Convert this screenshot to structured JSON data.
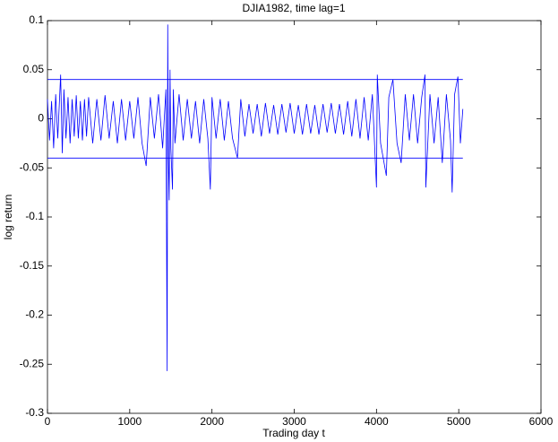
{
  "chart_data": {
    "type": "line",
    "title": "DJIA1982, time lag=1",
    "x_label": "Trading day t",
    "y_label": "log return",
    "xlim": [
      0,
      6000
    ],
    "xticks": [
      0,
      1000,
      2000,
      3000,
      4000,
      5000,
      6000
    ],
    "ylim": [
      -0.3,
      0.1
    ],
    "yticks": [
      0.1,
      0.05,
      0,
      -0.05,
      -0.1,
      -0.15,
      -0.2,
      -0.25,
      -0.3
    ],
    "grid": false,
    "series": [
      {
        "color": "#0000ff",
        "x": [
          0,
          25,
          50,
          75,
          100,
          125,
          160,
          180,
          200,
          225,
          250,
          275,
          300,
          325,
          350,
          375,
          400,
          425,
          450,
          475,
          500,
          550,
          600,
          650,
          700,
          750,
          800,
          850,
          900,
          950,
          1000,
          1050,
          1100,
          1150,
          1200,
          1250,
          1300,
          1350,
          1400,
          1440,
          1455,
          1462,
          1470,
          1480,
          1490,
          1500,
          1520,
          1530,
          1550,
          1600,
          1650,
          1700,
          1750,
          1800,
          1850,
          1900,
          1950,
          1980,
          2000,
          2050,
          2100,
          2150,
          2200,
          2250,
          2310,
          2350,
          2400,
          2450,
          2500,
          2550,
          2600,
          2650,
          2700,
          2750,
          2800,
          2850,
          2900,
          2950,
          3000,
          3050,
          3100,
          3150,
          3200,
          3250,
          3300,
          3350,
          3400,
          3450,
          3500,
          3550,
          3600,
          3650,
          3700,
          3750,
          3800,
          3850,
          3900,
          3950,
          4000,
          4010,
          4050,
          4120,
          4150,
          4200,
          4250,
          4300,
          4350,
          4400,
          4450,
          4500,
          4550,
          4590,
          4600,
          4650,
          4700,
          4750,
          4800,
          4850,
          4900,
          4920,
          4950,
          4990,
          5020,
          5050
        ],
        "values": [
          0.02,
          -0.022,
          0.018,
          -0.03,
          0.025,
          -0.02,
          0.045,
          -0.035,
          0.03,
          -0.02,
          0.022,
          -0.025,
          0.02,
          -0.018,
          0.024,
          -0.02,
          0.018,
          -0.022,
          0.02,
          -0.018,
          0.022,
          -0.025,
          0.02,
          -0.022,
          0.024,
          -0.02,
          0.018,
          -0.025,
          0.02,
          -0.022,
          0.018,
          -0.02,
          0.022,
          -0.025,
          -0.048,
          0.022,
          -0.02,
          0.025,
          -0.03,
          0.03,
          -0.257,
          0.096,
          -0.04,
          -0.083,
          0.05,
          -0.03,
          -0.072,
          0.03,
          -0.025,
          0.025,
          -0.022,
          0.02,
          -0.02,
          0.018,
          -0.025,
          0.02,
          -0.02,
          -0.072,
          0.022,
          -0.02,
          0.02,
          -0.022,
          0.018,
          -0.02,
          -0.04,
          0.02,
          -0.018,
          0.015,
          -0.015,
          0.015,
          -0.018,
          0.016,
          -0.015,
          0.014,
          -0.016,
          0.015,
          -0.014,
          0.016,
          -0.015,
          0.014,
          -0.016,
          0.015,
          -0.015,
          0.014,
          -0.016,
          0.015,
          -0.014,
          0.016,
          -0.015,
          0.015,
          -0.016,
          0.018,
          -0.018,
          0.02,
          -0.02,
          0.022,
          -0.022,
          0.025,
          -0.07,
          0.045,
          -0.025,
          -0.058,
          0.022,
          0.04,
          -0.025,
          -0.045,
          0.025,
          -0.022,
          0.025,
          -0.025,
          0.022,
          0.045,
          -0.07,
          0.025,
          -0.025,
          0.022,
          -0.045,
          0.025,
          -0.022,
          -0.075,
          0.025,
          0.043,
          -0.025,
          0.01
        ]
      },
      {
        "color": "#0000ff",
        "x": [
          0,
          5050
        ],
        "values": [
          0.04,
          0.04
        ]
      },
      {
        "color": "#0000ff",
        "x": [
          0,
          5050
        ],
        "values": [
          -0.04,
          -0.04
        ]
      }
    ]
  }
}
